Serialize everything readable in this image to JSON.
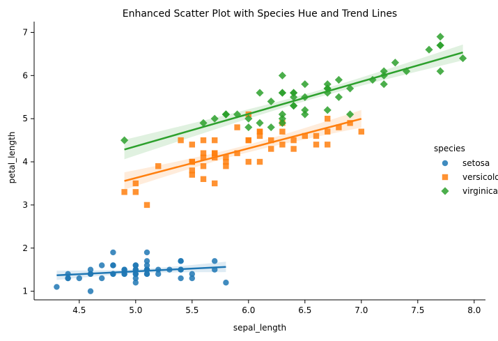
{
  "chart_data": {
    "type": "scatter",
    "title": "Enhanced Scatter Plot with Species Hue and Trend Lines",
    "xlabel": "sepal_length",
    "ylabel": "petal_length",
    "xlim": [
      4.1,
      8.1
    ],
    "ylim": [
      0.8,
      7.25
    ],
    "xticks": [
      4.5,
      5.0,
      5.5,
      6.0,
      6.5,
      7.0,
      7.5,
      8.0
    ],
    "xtick_labels": [
      "4.5",
      "5.0",
      "5.5",
      "6.0",
      "6.5",
      "7.0",
      "7.5",
      "8.0"
    ],
    "yticks": [
      1,
      2,
      3,
      4,
      5,
      6,
      7
    ],
    "ytick_labels": [
      "1",
      "2",
      "3",
      "4",
      "5",
      "6",
      "7"
    ],
    "grid": false,
    "legend": {
      "title": "species",
      "placement": "center-right"
    },
    "series": [
      {
        "name": "setosa",
        "color": "#1f77b4",
        "marker": "circle",
        "trend": {
          "x_range": [
            4.3,
            5.8
          ],
          "slope": 0.13,
          "intercept": 0.81
        },
        "points": [
          [
            4.3,
            1.1
          ],
          [
            4.4,
            1.4
          ],
          [
            4.4,
            1.3
          ],
          [
            4.4,
            1.3
          ],
          [
            4.5,
            1.3
          ],
          [
            4.6,
            1.4
          ],
          [
            4.6,
            1.0
          ],
          [
            4.6,
            1.5
          ],
          [
            4.6,
            1.4
          ],
          [
            4.7,
            1.3
          ],
          [
            4.7,
            1.6
          ],
          [
            4.8,
            1.6
          ],
          [
            4.8,
            1.4
          ],
          [
            4.8,
            1.9
          ],
          [
            4.8,
            1.6
          ],
          [
            4.8,
            1.4
          ],
          [
            4.9,
            1.4
          ],
          [
            4.9,
            1.5
          ],
          [
            4.9,
            1.5
          ],
          [
            4.9,
            1.4
          ],
          [
            5.0,
            1.4
          ],
          [
            5.0,
            1.5
          ],
          [
            5.0,
            1.6
          ],
          [
            5.0,
            1.2
          ],
          [
            5.0,
            1.3
          ],
          [
            5.0,
            1.6
          ],
          [
            5.0,
            1.4
          ],
          [
            5.0,
            1.5
          ],
          [
            5.1,
            1.4
          ],
          [
            5.1,
            1.5
          ],
          [
            5.1,
            1.5
          ],
          [
            5.1,
            1.7
          ],
          [
            5.1,
            1.9
          ],
          [
            5.1,
            1.6
          ],
          [
            5.1,
            1.4
          ],
          [
            5.1,
            1.5
          ],
          [
            5.2,
            1.5
          ],
          [
            5.2,
            1.4
          ],
          [
            5.3,
            1.5
          ],
          [
            5.4,
            1.7
          ],
          [
            5.4,
            1.5
          ],
          [
            5.4,
            1.7
          ],
          [
            5.4,
            1.3
          ],
          [
            5.4,
            1.5
          ],
          [
            5.5,
            1.4
          ],
          [
            5.5,
            1.3
          ],
          [
            5.7,
            1.5
          ],
          [
            5.7,
            1.7
          ],
          [
            5.8,
            1.2
          ]
        ]
      },
      {
        "name": "versicolor",
        "color": "#ff7f0e",
        "marker": "square",
        "trend": {
          "x_range": [
            4.9,
            7.0
          ],
          "slope": 0.686,
          "intercept": 0.195
        },
        "points": [
          [
            4.9,
            3.3
          ],
          [
            5.0,
            3.5
          ],
          [
            5.0,
            3.3
          ],
          [
            5.1,
            3.0
          ],
          [
            5.2,
            3.9
          ],
          [
            5.4,
            4.5
          ],
          [
            5.5,
            4.0
          ],
          [
            5.5,
            3.8
          ],
          [
            5.5,
            3.7
          ],
          [
            5.5,
            4.4
          ],
          [
            5.5,
            4.0
          ],
          [
            5.6,
            3.6
          ],
          [
            5.6,
            4.5
          ],
          [
            5.6,
            4.2
          ],
          [
            5.6,
            3.9
          ],
          [
            5.6,
            4.1
          ],
          [
            5.7,
            4.5
          ],
          [
            5.7,
            3.5
          ],
          [
            5.7,
            4.2
          ],
          [
            5.7,
            4.2
          ],
          [
            5.7,
            4.1
          ],
          [
            5.8,
            4.1
          ],
          [
            5.8,
            4.0
          ],
          [
            5.8,
            3.9
          ],
          [
            5.9,
            4.8
          ],
          [
            5.9,
            4.2
          ],
          [
            6.0,
            4.0
          ],
          [
            6.0,
            4.5
          ],
          [
            6.0,
            5.1
          ],
          [
            6.0,
            4.5
          ],
          [
            6.1,
            4.7
          ],
          [
            6.1,
            4.0
          ],
          [
            6.1,
            4.7
          ],
          [
            6.1,
            4.6
          ],
          [
            6.2,
            4.5
          ],
          [
            6.2,
            4.3
          ],
          [
            6.3,
            4.7
          ],
          [
            6.3,
            4.4
          ],
          [
            6.3,
            4.9
          ],
          [
            6.4,
            4.5
          ],
          [
            6.4,
            4.3
          ],
          [
            6.5,
            4.6
          ],
          [
            6.6,
            4.6
          ],
          [
            6.6,
            4.4
          ],
          [
            6.7,
            4.4
          ],
          [
            6.7,
            4.7
          ],
          [
            6.7,
            5.0
          ],
          [
            6.8,
            4.8
          ],
          [
            6.9,
            4.9
          ],
          [
            7.0,
            4.7
          ]
        ]
      },
      {
        "name": "virginica",
        "color": "#2ca02c",
        "marker": "diamond",
        "trend": {
          "x_range": [
            4.9,
            7.9
          ],
          "slope": 0.75,
          "intercept": 0.61
        },
        "points": [
          [
            4.9,
            4.5
          ],
          [
            5.6,
            4.9
          ],
          [
            5.7,
            5.0
          ],
          [
            5.8,
            5.1
          ],
          [
            5.8,
            5.1
          ],
          [
            5.8,
            5.1
          ],
          [
            5.9,
            5.1
          ],
          [
            6.0,
            5.0
          ],
          [
            6.0,
            4.8
          ],
          [
            6.1,
            5.6
          ],
          [
            6.1,
            4.9
          ],
          [
            6.2,
            4.8
          ],
          [
            6.2,
            5.4
          ],
          [
            6.3,
            6.0
          ],
          [
            6.3,
            5.1
          ],
          [
            6.3,
            5.6
          ],
          [
            6.3,
            5.6
          ],
          [
            6.3,
            5.0
          ],
          [
            6.3,
            4.9
          ],
          [
            6.4,
            5.6
          ],
          [
            6.4,
            5.3
          ],
          [
            6.4,
            5.5
          ],
          [
            6.4,
            5.3
          ],
          [
            6.4,
            5.6
          ],
          [
            6.5,
            5.8
          ],
          [
            6.5,
            5.5
          ],
          [
            6.5,
            5.2
          ],
          [
            6.5,
            5.1
          ],
          [
            6.7,
            5.8
          ],
          [
            6.7,
            5.7
          ],
          [
            6.7,
            5.7
          ],
          [
            6.7,
            5.6
          ],
          [
            6.7,
            5.2
          ],
          [
            6.8,
            5.5
          ],
          [
            6.8,
            5.9
          ],
          [
            6.9,
            5.1
          ],
          [
            6.9,
            5.7
          ],
          [
            7.1,
            5.9
          ],
          [
            7.2,
            6.1
          ],
          [
            7.2,
            6.0
          ],
          [
            7.2,
            5.8
          ],
          [
            7.3,
            6.3
          ],
          [
            7.4,
            6.1
          ],
          [
            7.6,
            6.6
          ],
          [
            7.7,
            6.7
          ],
          [
            7.7,
            6.9
          ],
          [
            7.7,
            6.7
          ],
          [
            7.7,
            6.1
          ],
          [
            7.9,
            6.4
          ]
        ]
      }
    ]
  }
}
